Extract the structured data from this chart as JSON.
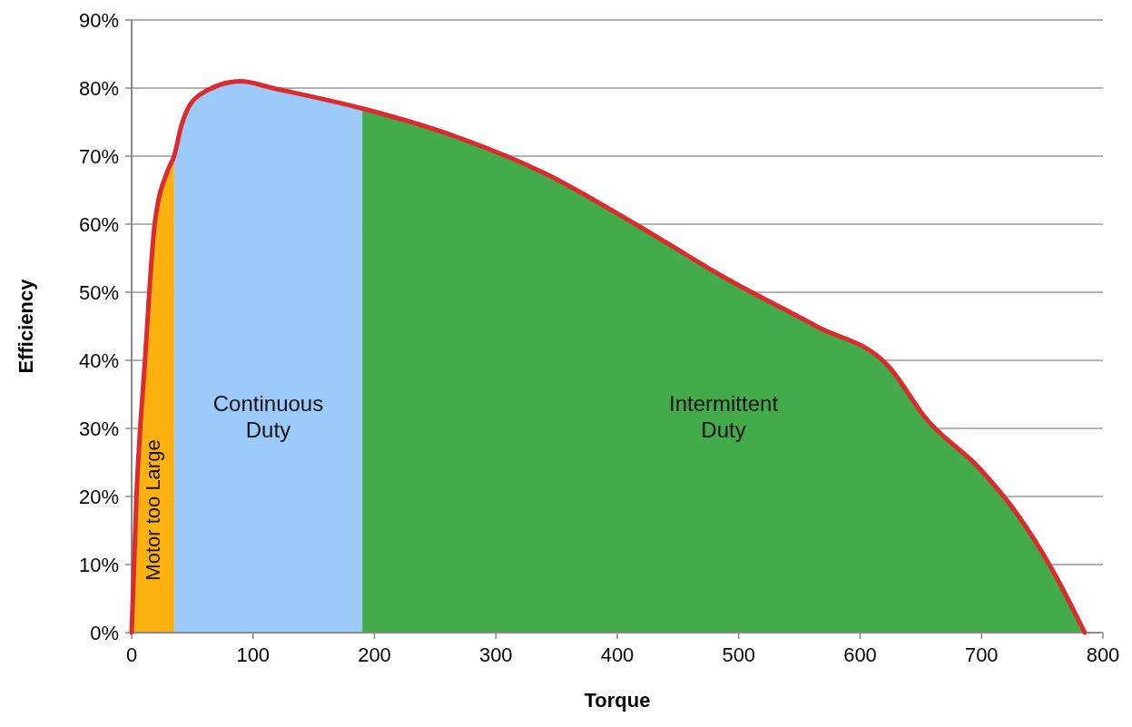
{
  "chart_data": {
    "type": "area",
    "xlabel": "Torque",
    "ylabel": "Efficiency",
    "xlim": [
      0,
      800
    ],
    "xticks": [
      0,
      100,
      200,
      300,
      400,
      500,
      600,
      700,
      800
    ],
    "ylim": [
      0,
      90
    ],
    "yticks": [
      {
        "value": 0,
        "label": "0%"
      },
      {
        "value": 10,
        "label": "10%"
      },
      {
        "value": 20,
        "label": "20%"
      },
      {
        "value": 30,
        "label": "30%"
      },
      {
        "value": 40,
        "label": "40%"
      },
      {
        "value": 50,
        "label": "50%"
      },
      {
        "value": 60,
        "label": "60%"
      },
      {
        "value": 70,
        "label": "70%"
      },
      {
        "value": 80,
        "label": "80%"
      },
      {
        "value": 90,
        "label": "90%"
      }
    ],
    "grid": "y",
    "marker": "none",
    "series": [
      {
        "name": "Motor too Large",
        "color": "#fbb10f",
        "x": [
          0,
          4,
          11,
          19,
          30,
          35
        ],
        "values": [
          0,
          20,
          40,
          60,
          68,
          70
        ]
      },
      {
        "name": "Continuous Duty",
        "color": "#9ccbfb",
        "x": [
          35,
          41,
          56,
          90,
          116,
          190
        ],
        "values": [
          70,
          74.5,
          79,
          81,
          80,
          77
        ]
      },
      {
        "name": "Intermittent Duty",
        "color": "#43ab49",
        "x": [
          190,
          265,
          340,
          415,
          490,
          564,
          624,
          654,
          699,
          729,
          759,
          785
        ],
        "values": [
          77,
          73,
          67.5,
          60,
          52,
          45,
          39,
          31.5,
          24,
          17.5,
          9,
          0
        ]
      },
      {
        "type": "line",
        "color": "#dc2a2e",
        "x": [
          0,
          4,
          11,
          19,
          30,
          35,
          41,
          56,
          90,
          116,
          190,
          265,
          340,
          415,
          490,
          564,
          624,
          654,
          699,
          729,
          759,
          785
        ],
        "values": [
          0,
          20,
          40,
          60,
          68,
          70,
          74.5,
          79,
          81,
          80,
          77,
          73,
          67.5,
          60,
          52,
          45,
          39,
          31.5,
          24,
          17.5,
          9,
          0
        ]
      }
    ]
  }
}
